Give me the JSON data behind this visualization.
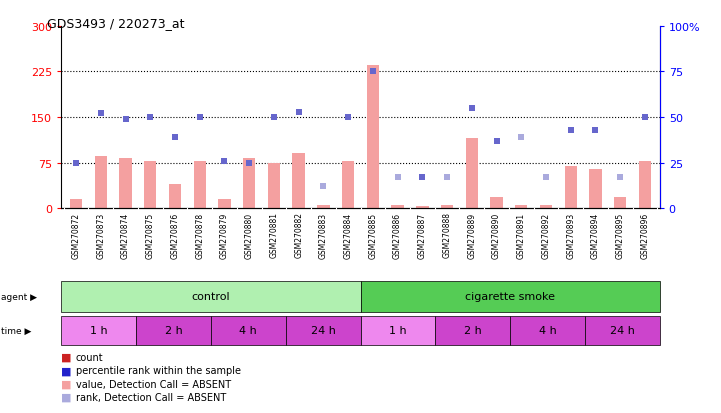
{
  "title": "GDS3493 / 220273_at",
  "samples": [
    "GSM270872",
    "GSM270873",
    "GSM270874",
    "GSM270875",
    "GSM270876",
    "GSM270878",
    "GSM270879",
    "GSM270880",
    "GSM270881",
    "GSM270882",
    "GSM270883",
    "GSM270884",
    "GSM270885",
    "GSM270886",
    "GSM270887",
    "GSM270888",
    "GSM270889",
    "GSM270890",
    "GSM270891",
    "GSM270892",
    "GSM270893",
    "GSM270894",
    "GSM270895",
    "GSM270896"
  ],
  "count_values": [
    15,
    85,
    82,
    78,
    40,
    78,
    15,
    82,
    75,
    90,
    5,
    78,
    235,
    5,
    3,
    5,
    115,
    18,
    5,
    5,
    70,
    65,
    18,
    78
  ],
  "count_absent": [
    true,
    false,
    false,
    false,
    true,
    false,
    true,
    false,
    false,
    false,
    true,
    false,
    false,
    true,
    true,
    true,
    false,
    true,
    true,
    true,
    false,
    false,
    true,
    false
  ],
  "rank_values": [
    25,
    52,
    49,
    50,
    39,
    50,
    26,
    25,
    50,
    53,
    12,
    50,
    75,
    17,
    17,
    17,
    55,
    37,
    39,
    17,
    43,
    43,
    17,
    50
  ],
  "rank_absent": [
    false,
    false,
    false,
    false,
    false,
    false,
    false,
    false,
    false,
    false,
    true,
    false,
    false,
    true,
    false,
    true,
    false,
    false,
    true,
    true,
    false,
    false,
    true,
    false
  ],
  "ylim_left": [
    0,
    300
  ],
  "ylim_right": [
    0,
    100
  ],
  "yticks_left": [
    0,
    75,
    150,
    225,
    300
  ],
  "yticks_right": [
    0,
    25,
    50,
    75,
    100
  ],
  "bar_color": "#f4a0a0",
  "dot_color_present": "#6666cc",
  "dot_color_absent": "#aaaadd",
  "agent_groups": [
    {
      "label": "control",
      "start": 0,
      "end": 12,
      "color": "#b0f0b0"
    },
    {
      "label": "cigarette smoke",
      "start": 12,
      "end": 24,
      "color": "#55cc55"
    }
  ],
  "time_groups": [
    {
      "label": "1 h",
      "start": 0,
      "end": 3,
      "color": "#ee88ee"
    },
    {
      "label": "2 h",
      "start": 3,
      "end": 6,
      "color": "#cc44cc"
    },
    {
      "label": "4 h",
      "start": 6,
      "end": 9,
      "color": "#cc44cc"
    },
    {
      "label": "24 h",
      "start": 9,
      "end": 12,
      "color": "#cc44cc"
    },
    {
      "label": "1 h",
      "start": 12,
      "end": 15,
      "color": "#ee88ee"
    },
    {
      "label": "2 h",
      "start": 15,
      "end": 18,
      "color": "#cc44cc"
    },
    {
      "label": "4 h",
      "start": 18,
      "end": 21,
      "color": "#cc44cc"
    },
    {
      "label": "24 h",
      "start": 21,
      "end": 24,
      "color": "#cc44cc"
    }
  ],
  "legend": [
    {
      "symbol": "■",
      "color": "#cc2222",
      "text": "count"
    },
    {
      "symbol": "■",
      "color": "#2222cc",
      "text": "percentile rank within the sample"
    },
    {
      "symbol": "■",
      "color": "#f4a0a0",
      "text": "value, Detection Call = ABSENT"
    },
    {
      "symbol": "■",
      "color": "#aaaadd",
      "text": "rank, Detection Call = ABSENT"
    }
  ]
}
